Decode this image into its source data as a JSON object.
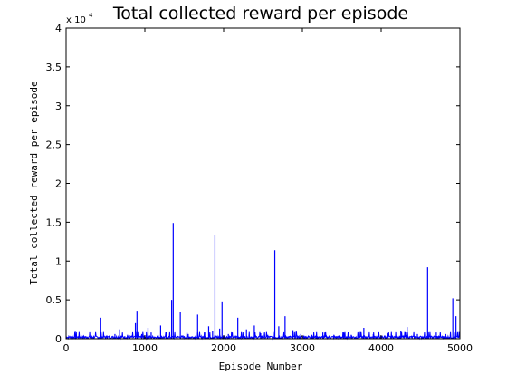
{
  "chart_data": {
    "type": "line",
    "title": "Total collected reward per episode",
    "xlabel": "Episode Number",
    "ylabel": "Total collected reward per episode",
    "y_multiplier_label": "x 10",
    "y_multiplier_exponent": "4",
    "xlim": [
      0,
      5000
    ],
    "ylim": [
      0,
      4
    ],
    "x_ticks": [
      0,
      1000,
      2000,
      3000,
      4000,
      5000
    ],
    "x_tick_labels": [
      "0",
      "1000",
      "2000",
      "3000",
      "4000",
      "5000"
    ],
    "y_ticks": [
      0,
      0.5,
      1,
      1.5,
      2,
      2.5,
      3,
      3.5,
      4
    ],
    "y_tick_labels": [
      "0",
      "0.5",
      "1",
      "1.5",
      "2",
      "2.5",
      "3",
      "3.5",
      "4"
    ],
    "grid": false,
    "series": [
      {
        "color": "#0000ff",
        "baseline_level": 0.02,
        "spikes": [
          {
            "x": 120,
            "y": 0.05
          },
          {
            "x": 220,
            "y": 0.04
          },
          {
            "x": 330,
            "y": 0.03
          },
          {
            "x": 440,
            "y": 0.27
          },
          {
            "x": 520,
            "y": 0.04
          },
          {
            "x": 620,
            "y": 0.06
          },
          {
            "x": 680,
            "y": 0.12
          },
          {
            "x": 780,
            "y": 0.05
          },
          {
            "x": 880,
            "y": 0.2
          },
          {
            "x": 900,
            "y": 0.36
          },
          {
            "x": 960,
            "y": 0.06
          },
          {
            "x": 1040,
            "y": 0.14
          },
          {
            "x": 1080,
            "y": 0.08
          },
          {
            "x": 1200,
            "y": 0.17
          },
          {
            "x": 1270,
            "y": 0.08
          },
          {
            "x": 1340,
            "y": 0.5
          },
          {
            "x": 1360,
            "y": 1.49
          },
          {
            "x": 1450,
            "y": 0.34
          },
          {
            "x": 1550,
            "y": 0.06
          },
          {
            "x": 1670,
            "y": 0.31
          },
          {
            "x": 1760,
            "y": 0.08
          },
          {
            "x": 1810,
            "y": 0.16
          },
          {
            "x": 1860,
            "y": 0.1
          },
          {
            "x": 1890,
            "y": 1.33
          },
          {
            "x": 1950,
            "y": 0.13
          },
          {
            "x": 1980,
            "y": 0.48
          },
          {
            "x": 2060,
            "y": 0.06
          },
          {
            "x": 2180,
            "y": 0.27
          },
          {
            "x": 2290,
            "y": 0.12
          },
          {
            "x": 2390,
            "y": 0.17
          },
          {
            "x": 2470,
            "y": 0.07
          },
          {
            "x": 2560,
            "y": 0.05
          },
          {
            "x": 2650,
            "y": 1.14
          },
          {
            "x": 2700,
            "y": 0.16
          },
          {
            "x": 2780,
            "y": 0.29
          },
          {
            "x": 2880,
            "y": 0.11
          },
          {
            "x": 2980,
            "y": 0.06
          },
          {
            "x": 3120,
            "y": 0.05
          },
          {
            "x": 3260,
            "y": 0.08
          },
          {
            "x": 3400,
            "y": 0.05
          },
          {
            "x": 3520,
            "y": 0.07
          },
          {
            "x": 3620,
            "y": 0.05
          },
          {
            "x": 3780,
            "y": 0.14
          },
          {
            "x": 3900,
            "y": 0.06
          },
          {
            "x": 4080,
            "y": 0.07
          },
          {
            "x": 4250,
            "y": 0.1
          },
          {
            "x": 4330,
            "y": 0.15
          },
          {
            "x": 4460,
            "y": 0.06
          },
          {
            "x": 4590,
            "y": 0.92
          },
          {
            "x": 4700,
            "y": 0.08
          },
          {
            "x": 4820,
            "y": 0.06
          },
          {
            "x": 4910,
            "y": 0.52
          },
          {
            "x": 4950,
            "y": 0.29
          }
        ]
      }
    ]
  }
}
